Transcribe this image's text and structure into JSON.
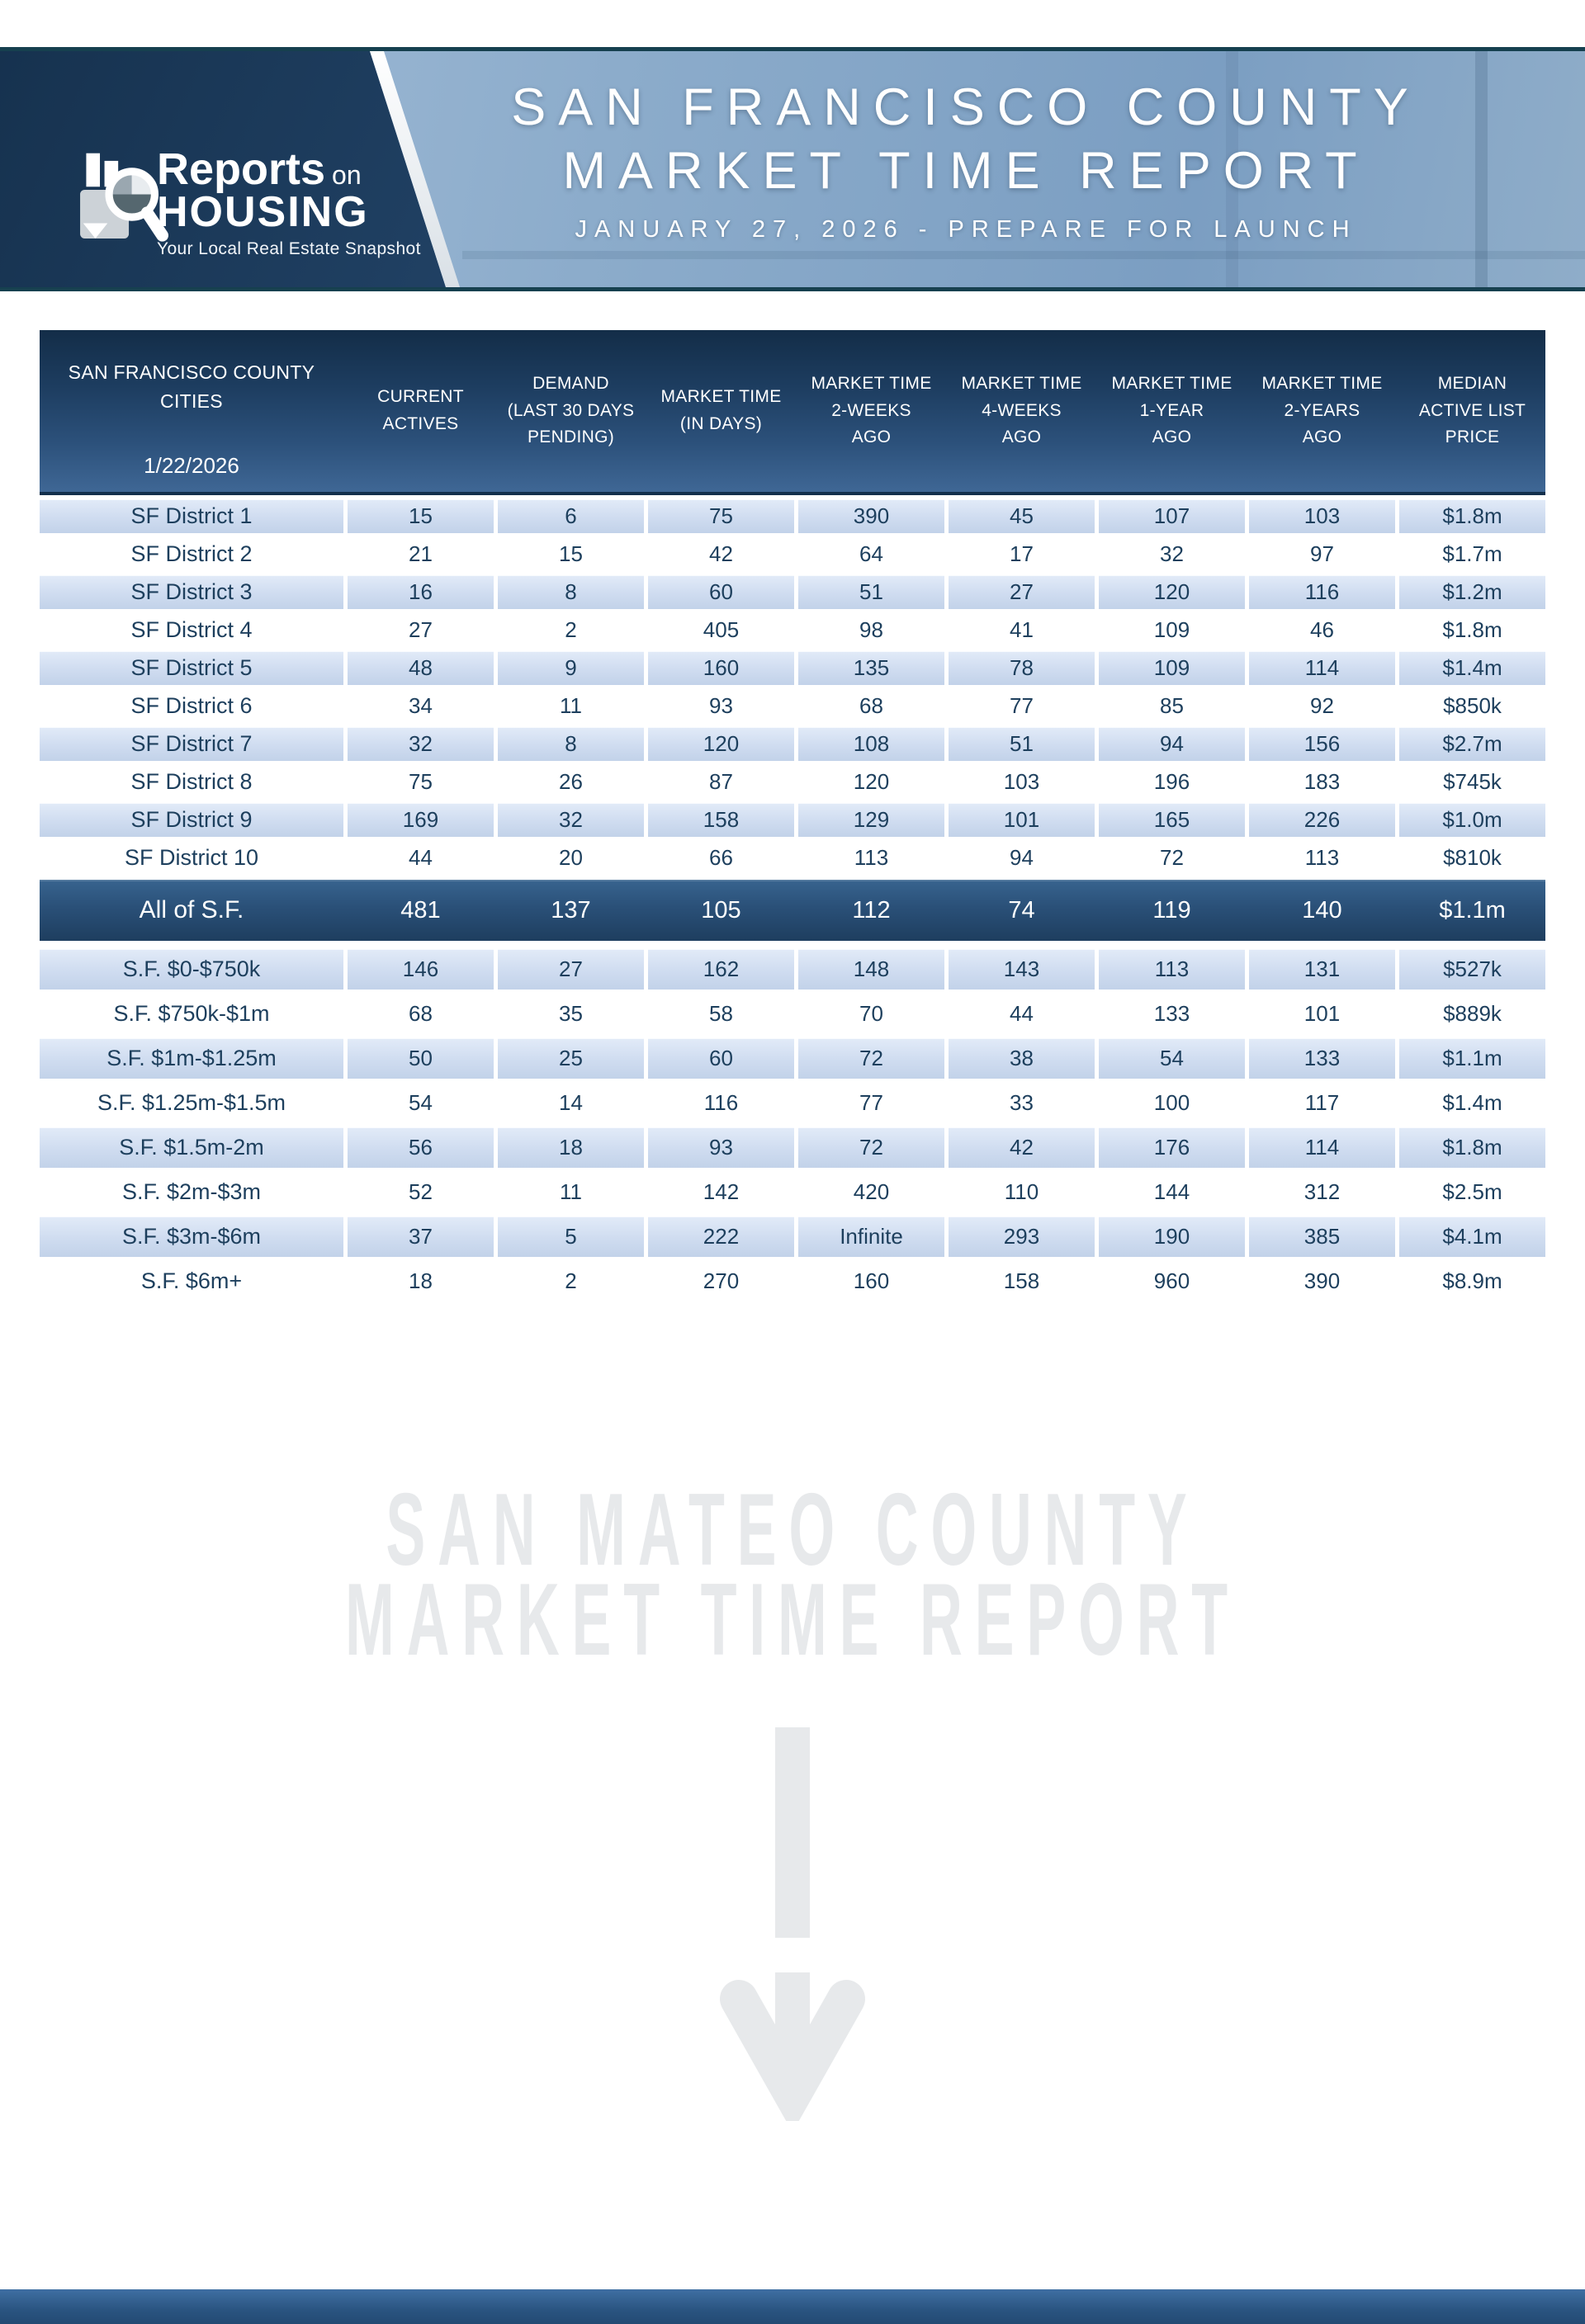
{
  "banner": {
    "logo": {
      "word1": "Reports",
      "word1_suffix": "on",
      "word2": "HOUSING",
      "tagline": "Your Local Real Estate Snapshot"
    },
    "title_line1": "SAN FRANCISCO COUNTY",
    "title_line2": "MARKET TIME REPORT",
    "subtitle": "JANUARY 27, 2026 - PREPARE FOR LAUNCH"
  },
  "table": {
    "header": {
      "col1_lines": [
        "SAN FRANCISCO COUNTY",
        "CITIES"
      ],
      "col1_date": "1/22/2026",
      "columns": [
        {
          "lines": [
            "CURRENT",
            "ACTIVES"
          ]
        },
        {
          "lines": [
            "DEMAND",
            "(LAST 30 DAYS",
            "PENDING)"
          ]
        },
        {
          "lines": [
            "MARKET TIME",
            "(IN DAYS)"
          ]
        },
        {
          "lines": [
            "MARKET TIME",
            "2-WEEKS",
            "AGO"
          ]
        },
        {
          "lines": [
            "MARKET TIME",
            "4-WEEKS",
            "AGO"
          ]
        },
        {
          "lines": [
            "MARKET TIME",
            "1-YEAR",
            "AGO"
          ]
        },
        {
          "lines": [
            "MARKET TIME",
            "2-YEARS",
            "AGO"
          ]
        },
        {
          "lines": [
            "MEDIAN",
            "ACTIVE LIST",
            "PRICE"
          ]
        }
      ]
    },
    "district_rows": [
      {
        "label": "SF District 1",
        "values": [
          "15",
          "6",
          "75",
          "390",
          "45",
          "107",
          "103",
          "$1.8m"
        ]
      },
      {
        "label": "SF District 2",
        "values": [
          "21",
          "15",
          "42",
          "64",
          "17",
          "32",
          "97",
          "$1.7m"
        ]
      },
      {
        "label": "SF District 3",
        "values": [
          "16",
          "8",
          "60",
          "51",
          "27",
          "120",
          "116",
          "$1.2m"
        ]
      },
      {
        "label": "SF District 4",
        "values": [
          "27",
          "2",
          "405",
          "98",
          "41",
          "109",
          "46",
          "$1.8m"
        ]
      },
      {
        "label": "SF District 5",
        "values": [
          "48",
          "9",
          "160",
          "135",
          "78",
          "109",
          "114",
          "$1.4m"
        ]
      },
      {
        "label": "SF District 6",
        "values": [
          "34",
          "11",
          "93",
          "68",
          "77",
          "85",
          "92",
          "$850k"
        ]
      },
      {
        "label": "SF District 7",
        "values": [
          "32",
          "8",
          "120",
          "108",
          "51",
          "94",
          "156",
          "$2.7m"
        ]
      },
      {
        "label": "SF District 8",
        "values": [
          "75",
          "26",
          "87",
          "120",
          "103",
          "196",
          "183",
          "$745k"
        ]
      },
      {
        "label": "SF District 9",
        "values": [
          "169",
          "32",
          "158",
          "129",
          "101",
          "165",
          "226",
          "$1.0m"
        ]
      },
      {
        "label": "SF District 10",
        "values": [
          "44",
          "20",
          "66",
          "113",
          "94",
          "72",
          "113",
          "$810k"
        ]
      }
    ],
    "summary_row": {
      "label": "All of S.F.",
      "values": [
        "481",
        "137",
        "105",
        "112",
        "74",
        "119",
        "140",
        "$1.1m"
      ]
    },
    "price_rows": [
      {
        "label": "S.F. $0-$750k",
        "values": [
          "146",
          "27",
          "162",
          "148",
          "143",
          "113",
          "131",
          "$527k"
        ]
      },
      {
        "label": "S.F. $750k-$1m",
        "values": [
          "68",
          "35",
          "58",
          "70",
          "44",
          "133",
          "101",
          "$889k"
        ]
      },
      {
        "label": "S.F. $1m-$1.25m",
        "values": [
          "50",
          "25",
          "60",
          "72",
          "38",
          "54",
          "133",
          "$1.1m"
        ]
      },
      {
        "label": "S.F. $1.25m-$1.5m",
        "values": [
          "54",
          "14",
          "116",
          "77",
          "33",
          "100",
          "117",
          "$1.4m"
        ]
      },
      {
        "label": "S.F. $1.5m-2m",
        "values": [
          "56",
          "18",
          "93",
          "72",
          "42",
          "176",
          "114",
          "$1.8m"
        ]
      },
      {
        "label": "S.F. $2m-$3m",
        "values": [
          "52",
          "11",
          "142",
          "420",
          "110",
          "144",
          "312",
          "$2.5m"
        ]
      },
      {
        "label": "S.F. $3m-$6m",
        "values": [
          "37",
          "5",
          "222",
          "Infinite",
          "293",
          "190",
          "385",
          "$4.1m"
        ]
      },
      {
        "label": "S.F. $6m+",
        "values": [
          "18",
          "2",
          "270",
          "160",
          "158",
          "960",
          "390",
          "$8.9m"
        ]
      }
    ]
  },
  "teaser": {
    "line1": "SAN MATEO COUNTY",
    "line2": "MARKET TIME REPORT"
  },
  "colors": {
    "banner_border": "#16404f",
    "banner_left_dark": "#16324f",
    "banner_right_blue": "#8caccb",
    "table_header_dark": "#132d48",
    "row_alt_blue": "#cfdcf0",
    "row_text": "#1d3f5d",
    "summary_blue": "#2a5078",
    "watermark_gray": "#e7e9eb",
    "footer_blue": "#2a5480"
  }
}
